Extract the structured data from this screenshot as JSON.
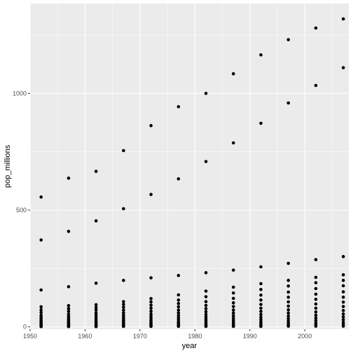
{
  "chart_data": {
    "type": "scatter",
    "title": "",
    "xlabel": "year",
    "ylabel": "pop_millions",
    "xlim": [
      1950,
      2008
    ],
    "ylim": [
      -10,
      1385
    ],
    "x_ticks": [
      1950,
      1960,
      1970,
      1980,
      1990,
      2000
    ],
    "y_ticks": [
      0,
      500,
      1000
    ],
    "grid": true,
    "colors": {
      "panel": "#ebebeb",
      "grid_major": "#ffffff",
      "point": "#000000",
      "tick_text": "#4d4d4d"
    },
    "points": [
      {
        "x": 1952,
        "y": 556
      },
      {
        "x": 1952,
        "y": 372
      },
      {
        "x": 1952,
        "y": 158
      },
      {
        "x": 1952,
        "y": 86
      },
      {
        "x": 1952,
        "y": 73
      },
      {
        "x": 1952,
        "y": 62
      },
      {
        "x": 1952,
        "y": 50
      },
      {
        "x": 1952,
        "y": 42
      },
      {
        "x": 1952,
        "y": 35
      },
      {
        "x": 1952,
        "y": 28
      },
      {
        "x": 1952,
        "y": 22
      },
      {
        "x": 1952,
        "y": 17
      },
      {
        "x": 1952,
        "y": 12
      },
      {
        "x": 1952,
        "y": 8
      },
      {
        "x": 1952,
        "y": 5
      },
      {
        "x": 1952,
        "y": 3
      },
      {
        "x": 1952,
        "y": 1
      },
      {
        "x": 1957,
        "y": 637
      },
      {
        "x": 1957,
        "y": 409
      },
      {
        "x": 1957,
        "y": 172
      },
      {
        "x": 1957,
        "y": 91
      },
      {
        "x": 1957,
        "y": 78
      },
      {
        "x": 1957,
        "y": 67
      },
      {
        "x": 1957,
        "y": 55
      },
      {
        "x": 1957,
        "y": 46
      },
      {
        "x": 1957,
        "y": 38
      },
      {
        "x": 1957,
        "y": 30
      },
      {
        "x": 1957,
        "y": 24
      },
      {
        "x": 1957,
        "y": 18
      },
      {
        "x": 1957,
        "y": 13
      },
      {
        "x": 1957,
        "y": 9
      },
      {
        "x": 1957,
        "y": 5
      },
      {
        "x": 1957,
        "y": 3
      },
      {
        "x": 1957,
        "y": 1
      },
      {
        "x": 1962,
        "y": 666
      },
      {
        "x": 1962,
        "y": 454
      },
      {
        "x": 1962,
        "y": 187
      },
      {
        "x": 1962,
        "y": 95
      },
      {
        "x": 1962,
        "y": 83
      },
      {
        "x": 1962,
        "y": 72
      },
      {
        "x": 1962,
        "y": 60
      },
      {
        "x": 1962,
        "y": 50
      },
      {
        "x": 1962,
        "y": 41
      },
      {
        "x": 1962,
        "y": 33
      },
      {
        "x": 1962,
        "y": 26
      },
      {
        "x": 1962,
        "y": 20
      },
      {
        "x": 1962,
        "y": 14
      },
      {
        "x": 1962,
        "y": 10
      },
      {
        "x": 1962,
        "y": 6
      },
      {
        "x": 1962,
        "y": 3
      },
      {
        "x": 1962,
        "y": 1
      },
      {
        "x": 1967,
        "y": 755
      },
      {
        "x": 1967,
        "y": 506
      },
      {
        "x": 1967,
        "y": 199
      },
      {
        "x": 1967,
        "y": 108
      },
      {
        "x": 1967,
        "y": 96
      },
      {
        "x": 1967,
        "y": 84
      },
      {
        "x": 1967,
        "y": 72
      },
      {
        "x": 1967,
        "y": 60
      },
      {
        "x": 1967,
        "y": 50
      },
      {
        "x": 1967,
        "y": 41
      },
      {
        "x": 1967,
        "y": 33
      },
      {
        "x": 1967,
        "y": 26
      },
      {
        "x": 1967,
        "y": 20
      },
      {
        "x": 1967,
        "y": 14
      },
      {
        "x": 1967,
        "y": 9
      },
      {
        "x": 1967,
        "y": 5
      },
      {
        "x": 1967,
        "y": 2
      },
      {
        "x": 1972,
        "y": 862
      },
      {
        "x": 1972,
        "y": 567
      },
      {
        "x": 1972,
        "y": 210
      },
      {
        "x": 1972,
        "y": 121
      },
      {
        "x": 1972,
        "y": 107
      },
      {
        "x": 1972,
        "y": 93
      },
      {
        "x": 1972,
        "y": 80
      },
      {
        "x": 1972,
        "y": 67
      },
      {
        "x": 1972,
        "y": 55
      },
      {
        "x": 1972,
        "y": 45
      },
      {
        "x": 1972,
        "y": 36
      },
      {
        "x": 1972,
        "y": 28
      },
      {
        "x": 1972,
        "y": 21
      },
      {
        "x": 1972,
        "y": 15
      },
      {
        "x": 1972,
        "y": 10
      },
      {
        "x": 1972,
        "y": 5
      },
      {
        "x": 1972,
        "y": 2
      },
      {
        "x": 1977,
        "y": 943
      },
      {
        "x": 1977,
        "y": 634
      },
      {
        "x": 1977,
        "y": 220
      },
      {
        "x": 1977,
        "y": 137
      },
      {
        "x": 1977,
        "y": 115
      },
      {
        "x": 1977,
        "y": 100
      },
      {
        "x": 1977,
        "y": 86
      },
      {
        "x": 1977,
        "y": 72
      },
      {
        "x": 1977,
        "y": 60
      },
      {
        "x": 1977,
        "y": 49
      },
      {
        "x": 1977,
        "y": 39
      },
      {
        "x": 1977,
        "y": 31
      },
      {
        "x": 1977,
        "y": 23
      },
      {
        "x": 1977,
        "y": 16
      },
      {
        "x": 1977,
        "y": 10
      },
      {
        "x": 1977,
        "y": 6
      },
      {
        "x": 1977,
        "y": 2
      },
      {
        "x": 1982,
        "y": 1000
      },
      {
        "x": 1982,
        "y": 708
      },
      {
        "x": 1982,
        "y": 232
      },
      {
        "x": 1982,
        "y": 153
      },
      {
        "x": 1982,
        "y": 129
      },
      {
        "x": 1982,
        "y": 108
      },
      {
        "x": 1982,
        "y": 92
      },
      {
        "x": 1982,
        "y": 78
      },
      {
        "x": 1982,
        "y": 65
      },
      {
        "x": 1982,
        "y": 53
      },
      {
        "x": 1982,
        "y": 43
      },
      {
        "x": 1982,
        "y": 34
      },
      {
        "x": 1982,
        "y": 26
      },
      {
        "x": 1982,
        "y": 18
      },
      {
        "x": 1982,
        "y": 11
      },
      {
        "x": 1982,
        "y": 6
      },
      {
        "x": 1982,
        "y": 2
      },
      {
        "x": 1987,
        "y": 1084
      },
      {
        "x": 1987,
        "y": 788
      },
      {
        "x": 1987,
        "y": 243
      },
      {
        "x": 1987,
        "y": 170
      },
      {
        "x": 1987,
        "y": 145
      },
      {
        "x": 1987,
        "y": 122
      },
      {
        "x": 1987,
        "y": 103
      },
      {
        "x": 1987,
        "y": 87
      },
      {
        "x": 1987,
        "y": 72
      },
      {
        "x": 1987,
        "y": 59
      },
      {
        "x": 1987,
        "y": 47
      },
      {
        "x": 1987,
        "y": 37
      },
      {
        "x": 1987,
        "y": 28
      },
      {
        "x": 1987,
        "y": 20
      },
      {
        "x": 1987,
        "y": 12
      },
      {
        "x": 1987,
        "y": 6
      },
      {
        "x": 1987,
        "y": 2
      },
      {
        "x": 1992,
        "y": 1165
      },
      {
        "x": 1992,
        "y": 872
      },
      {
        "x": 1992,
        "y": 257
      },
      {
        "x": 1992,
        "y": 185
      },
      {
        "x": 1992,
        "y": 160
      },
      {
        "x": 1992,
        "y": 136
      },
      {
        "x": 1992,
        "y": 115
      },
      {
        "x": 1992,
        "y": 96
      },
      {
        "x": 1992,
        "y": 80
      },
      {
        "x": 1992,
        "y": 66
      },
      {
        "x": 1992,
        "y": 53
      },
      {
        "x": 1992,
        "y": 41
      },
      {
        "x": 1992,
        "y": 31
      },
      {
        "x": 1992,
        "y": 22
      },
      {
        "x": 1992,
        "y": 14
      },
      {
        "x": 1992,
        "y": 7
      },
      {
        "x": 1992,
        "y": 2
      },
      {
        "x": 1997,
        "y": 1230
      },
      {
        "x": 1997,
        "y": 959
      },
      {
        "x": 1997,
        "y": 272
      },
      {
        "x": 1997,
        "y": 199
      },
      {
        "x": 1997,
        "y": 175
      },
      {
        "x": 1997,
        "y": 149
      },
      {
        "x": 1997,
        "y": 127
      },
      {
        "x": 1997,
        "y": 107
      },
      {
        "x": 1997,
        "y": 89
      },
      {
        "x": 1997,
        "y": 73
      },
      {
        "x": 1997,
        "y": 59
      },
      {
        "x": 1997,
        "y": 46
      },
      {
        "x": 1997,
        "y": 35
      },
      {
        "x": 1997,
        "y": 25
      },
      {
        "x": 1997,
        "y": 16
      },
      {
        "x": 1997,
        "y": 8
      },
      {
        "x": 1997,
        "y": 3
      },
      {
        "x": 2002,
        "y": 1280
      },
      {
        "x": 2002,
        "y": 1034
      },
      {
        "x": 2002,
        "y": 288
      },
      {
        "x": 2002,
        "y": 212
      },
      {
        "x": 2002,
        "y": 189
      },
      {
        "x": 2002,
        "y": 164
      },
      {
        "x": 2002,
        "y": 140
      },
      {
        "x": 2002,
        "y": 118
      },
      {
        "x": 2002,
        "y": 98
      },
      {
        "x": 2002,
        "y": 80
      },
      {
        "x": 2002,
        "y": 64
      },
      {
        "x": 2002,
        "y": 50
      },
      {
        "x": 2002,
        "y": 38
      },
      {
        "x": 2002,
        "y": 27
      },
      {
        "x": 2002,
        "y": 17
      },
      {
        "x": 2002,
        "y": 9
      },
      {
        "x": 2002,
        "y": 3
      },
      {
        "x": 2007,
        "y": 1319
      },
      {
        "x": 2007,
        "y": 1110
      },
      {
        "x": 2007,
        "y": 301
      },
      {
        "x": 2007,
        "y": 223
      },
      {
        "x": 2007,
        "y": 199
      },
      {
        "x": 2007,
        "y": 176
      },
      {
        "x": 2007,
        "y": 150
      },
      {
        "x": 2007,
        "y": 127
      },
      {
        "x": 2007,
        "y": 106
      },
      {
        "x": 2007,
        "y": 87
      },
      {
        "x": 2007,
        "y": 70
      },
      {
        "x": 2007,
        "y": 55
      },
      {
        "x": 2007,
        "y": 42
      },
      {
        "x": 2007,
        "y": 30
      },
      {
        "x": 2007,
        "y": 19
      },
      {
        "x": 2007,
        "y": 10
      },
      {
        "x": 2007,
        "y": 3
      }
    ]
  }
}
